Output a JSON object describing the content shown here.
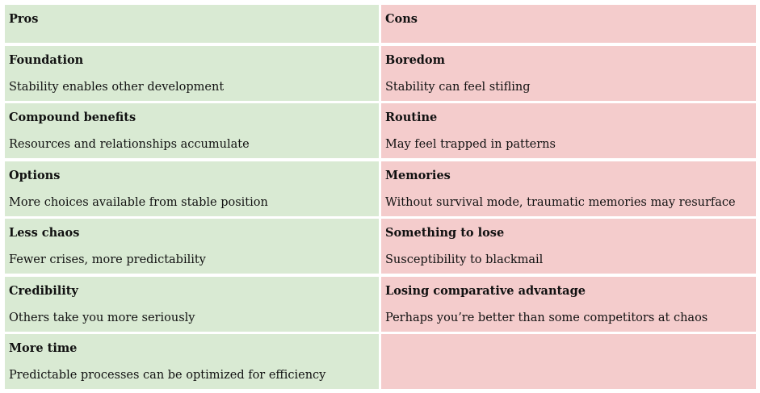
{
  "header": {
    "pros": "Pros",
    "cons": "Cons"
  },
  "rows": [
    {
      "pro": {
        "title": "Foundation",
        "text": "Stability enables other development"
      },
      "con": {
        "title": "Boredom",
        "text": "Stability can feel stifling"
      }
    },
    {
      "pro": {
        "title": "Compound benefits",
        "text": "Resources and relationships accumulate"
      },
      "con": {
        "title": "Routine",
        "text": "May feel trapped in patterns"
      }
    },
    {
      "pro": {
        "title": "Options",
        "text": "More choices available from stable position"
      },
      "con": {
        "title": "Memories",
        "text": "Without survival mode, traumatic memories may resurface"
      }
    },
    {
      "pro": {
        "title": "Less chaos",
        "text": "Fewer crises, more predictability"
      },
      "con": {
        "title": "Something to lose",
        "text": "Susceptibility to blackmail"
      }
    },
    {
      "pro": {
        "title": "Credibility",
        "text": "Others take you more seriously"
      },
      "con": {
        "title": "Losing comparative advantage",
        "text": "Perhaps you’re better than some competitors at chaos"
      }
    },
    {
      "pro": {
        "title": "More time",
        "text": "Predictable processes can be optimized for efficiency"
      }
    }
  ]
}
